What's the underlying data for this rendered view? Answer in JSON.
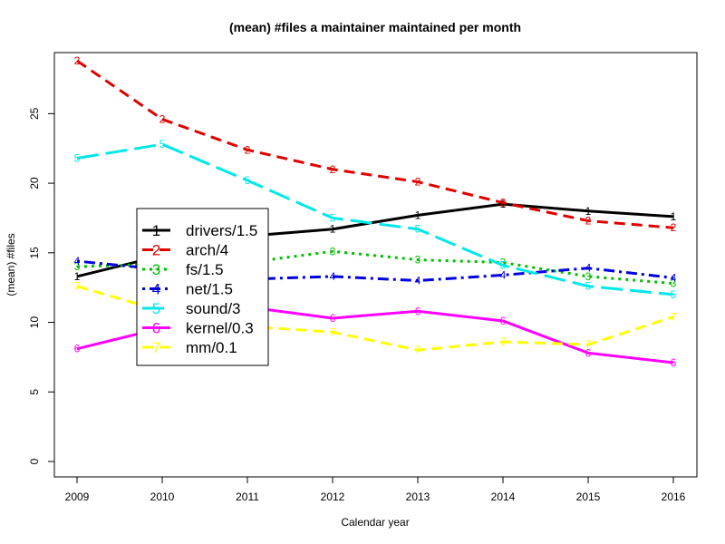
{
  "chart_data": {
    "type": "line",
    "title": "(mean) #files a maintainer maintained per month",
    "xlabel": "Calendar year",
    "ylabel": "(mean) #files",
    "x": [
      2009,
      2010,
      2011,
      2012,
      2013,
      2014,
      2015,
      2016
    ],
    "xlim": [
      2009,
      2016
    ],
    "ylim": [
      0,
      29
    ],
    "yticks": [
      0,
      5,
      10,
      15,
      20,
      25
    ],
    "grid": false,
    "legend_position": "center-left",
    "series": [
      {
        "name": "drivers/1.5",
        "marker": "1",
        "color": "#000000",
        "dash": "solid",
        "values": [
          13.3,
          14.8,
          16.2,
          16.7,
          17.7,
          18.5,
          18.0,
          17.6
        ]
      },
      {
        "name": "arch/4",
        "marker": "2",
        "color": "#e00000",
        "dash": "dashed",
        "values": [
          28.8,
          24.6,
          22.4,
          21.0,
          20.1,
          18.6,
          17.3,
          16.8
        ]
      },
      {
        "name": "fs/1.5",
        "marker": "3",
        "color": "#00c000",
        "dash": "dotted",
        "values": [
          14.0,
          14.2,
          14.3,
          15.1,
          14.5,
          14.3,
          13.3,
          12.8
        ]
      },
      {
        "name": "net/1.5",
        "marker": "4",
        "color": "#0000e0",
        "dash": "dotdash",
        "values": [
          14.4,
          13.8,
          13.1,
          13.3,
          13.0,
          13.4,
          13.9,
          13.2
        ]
      },
      {
        "name": "sound/3",
        "marker": "5",
        "color": "#00e8e8",
        "dash": "longdash",
        "values": [
          21.8,
          22.8,
          20.2,
          17.5,
          16.7,
          14.1,
          12.6,
          12.0
        ]
      },
      {
        "name": "kernel/0.3",
        "marker": "6",
        "color": "#ff00ff",
        "dash": "solid",
        "values": [
          8.1,
          9.6,
          11.1,
          10.3,
          10.8,
          10.1,
          7.8,
          7.1
        ]
      },
      {
        "name": "mm/0.1",
        "marker": "7",
        "color": "#ffff00",
        "dash": "dashed",
        "values": [
          12.6,
          10.8,
          9.7,
          9.3,
          8.0,
          8.6,
          8.4,
          10.4
        ]
      }
    ]
  }
}
